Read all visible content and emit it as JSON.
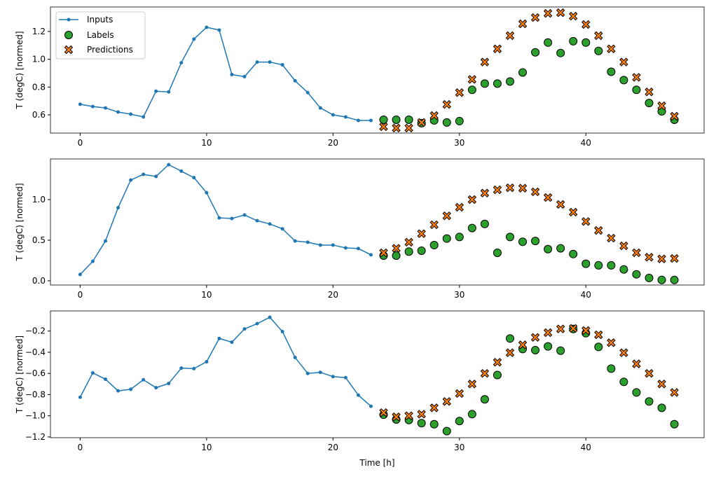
{
  "chart_data": {
    "type": "line",
    "xlabel": "Time [h]",
    "xlim": [
      -2.35,
      49.35
    ],
    "xticks": [
      0,
      10,
      20,
      30,
      40
    ],
    "legend": {
      "placement": "top-left",
      "entries": [
        "Inputs",
        "Labels",
        "Predictions"
      ]
    },
    "colors": {
      "inputs": "#1f77b4",
      "labels": "#2ca02c",
      "predictions": "#ff7f0e"
    },
    "panels": [
      {
        "ylabel": "T (degC) [normed]",
        "ylim": [
          0.469,
          1.376
        ],
        "yticks": [
          0.6,
          0.8,
          1.0,
          1.2
        ],
        "ytick_labels": [
          "0.6",
          "0.8",
          "1.0",
          "1.2"
        ],
        "inputs": [
          0.676,
          0.66,
          0.65,
          0.62,
          0.605,
          0.585,
          0.77,
          0.765,
          0.975,
          1.145,
          1.23,
          1.21,
          0.89,
          0.875,
          0.98,
          0.98,
          0.96,
          0.845,
          0.76,
          0.65,
          0.6,
          0.585,
          0.56,
          0.56
        ],
        "labels": [
          0.565,
          0.565,
          0.565,
          0.54,
          0.56,
          0.545,
          0.555,
          0.78,
          0.825,
          0.825,
          0.84,
          0.905,
          1.05,
          1.12,
          1.045,
          1.13,
          1.12,
          1.06,
          0.91,
          0.85,
          0.78,
          0.685,
          0.625,
          0.565
        ],
        "predictions": [
          0.515,
          0.505,
          0.505,
          0.545,
          0.595,
          0.675,
          0.76,
          0.855,
          0.98,
          1.075,
          1.17,
          1.255,
          1.3,
          1.33,
          1.335,
          1.31,
          1.25,
          1.17,
          1.075,
          0.98,
          0.87,
          0.765,
          0.665,
          0.59
        ]
      },
      {
        "ylabel": "T (degC) [normed]",
        "ylim": [
          -0.052,
          1.5
        ],
        "yticks": [
          0,
          0.5,
          1.0
        ],
        "ytick_labels": [
          "0.0",
          "0.5",
          "1.0"
        ],
        "inputs": [
          0.078,
          0.24,
          0.49,
          0.9,
          1.24,
          1.31,
          1.285,
          1.43,
          1.35,
          1.27,
          1.085,
          0.775,
          0.767,
          0.81,
          0.74,
          0.7,
          0.64,
          0.49,
          0.475,
          0.44,
          0.44,
          0.405,
          0.397,
          0.32
        ],
        "labels": [
          0.31,
          0.31,
          0.36,
          0.37,
          0.44,
          0.52,
          0.54,
          0.65,
          0.7,
          0.345,
          0.54,
          0.48,
          0.49,
          0.39,
          0.4,
          0.33,
          0.21,
          0.19,
          0.19,
          0.14,
          0.08,
          0.035,
          0.01,
          0.01
        ],
        "predictions": [
          0.345,
          0.4,
          0.475,
          0.58,
          0.69,
          0.8,
          0.905,
          1.0,
          1.08,
          1.12,
          1.145,
          1.14,
          1.095,
          1.025,
          0.94,
          0.845,
          0.73,
          0.62,
          0.525,
          0.43,
          0.345,
          0.29,
          0.27,
          0.275
        ]
      },
      {
        "ylabel": "T (degC) [normed]",
        "ylim": [
          -1.207,
          -0.01
        ],
        "yticks": [
          -1.2,
          -1.0,
          -0.8,
          -0.6,
          -0.4,
          -0.2
        ],
        "ytick_labels": [
          "−1.2",
          "−1.0",
          "−0.8",
          "−0.6",
          "−0.4",
          "−0.2"
        ],
        "inputs": [
          -0.825,
          -0.595,
          -0.655,
          -0.765,
          -0.75,
          -0.66,
          -0.735,
          -0.695,
          -0.55,
          -0.555,
          -0.49,
          -0.27,
          -0.305,
          -0.18,
          -0.13,
          -0.07,
          -0.205,
          -0.45,
          -0.6,
          -0.59,
          -0.63,
          -0.64,
          -0.805,
          -0.91
        ],
        "labels": [
          -0.99,
          -1.035,
          -1.04,
          -1.07,
          -1.08,
          -1.145,
          -1.05,
          -0.985,
          -0.845,
          -0.615,
          -0.27,
          -0.37,
          -0.38,
          -0.345,
          -0.385,
          -0.18,
          -0.22,
          -0.35,
          -0.555,
          -0.68,
          -0.78,
          -0.865,
          -0.925,
          -1.08
        ],
        "predictions": [
          -0.97,
          -1.01,
          -1.0,
          -0.985,
          -0.925,
          -0.865,
          -0.79,
          -0.7,
          -0.6,
          -0.495,
          -0.405,
          -0.33,
          -0.26,
          -0.215,
          -0.18,
          -0.175,
          -0.195,
          -0.235,
          -0.31,
          -0.405,
          -0.51,
          -0.6,
          -0.7,
          -0.78
        ]
      }
    ]
  }
}
